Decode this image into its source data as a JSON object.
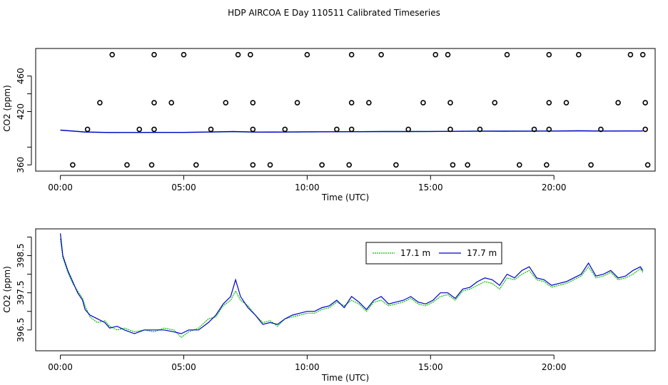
{
  "title": "HDP AIRCOA E  Day 110511  Calibrated Timeseries",
  "colors": {
    "green": "#00c000",
    "blue": "#0000cc"
  },
  "chart_data": [
    {
      "type": "scatter",
      "xlabel": "Time (UTC)",
      "ylabel": "CO2 (ppm)",
      "xlim": [
        -1,
        24.1
      ],
      "ylim": [
        353,
        491
      ],
      "x_ticks": [
        0,
        5,
        10,
        15,
        20
      ],
      "x_tick_labels": [
        "00:00",
        "05:00",
        "10:00",
        "15:00",
        "20:00"
      ],
      "y_ticks": [
        360,
        420,
        460
      ],
      "y_tick_labels": [
        "360",
        "420",
        "460"
      ],
      "y_ticks_minor": [
        380,
        440
      ],
      "calibration_points": {
        "hours": [
          2.1,
          3.8,
          5.0,
          7.2,
          7.7,
          10.0,
          11.8,
          13.0,
          15.2,
          15.7,
          18.1,
          19.8,
          21.0,
          23.1,
          23.6,
          1.6,
          3.8,
          4.5,
          6.7,
          7.8,
          9.6,
          11.8,
          12.5,
          14.7,
          15.8,
          17.6,
          19.8,
          20.5,
          22.6,
          23.7,
          1.1,
          3.2,
          3.8,
          6.1,
          7.8,
          9.1,
          11.2,
          11.8,
          14.1,
          15.8,
          17.0,
          19.2,
          19.8,
          21.9,
          23.7,
          0.5,
          2.7,
          3.7,
          5.5,
          7.8,
          8.5,
          10.6,
          11.7,
          13.6,
          15.9,
          16.5,
          18.6,
          19.7,
          21.5,
          23.8
        ],
        "values": [
          484,
          484,
          484,
          484,
          484,
          484,
          484,
          484,
          484,
          484,
          484,
          484,
          484,
          484,
          484,
          430,
          430,
          430,
          430,
          430,
          430,
          430,
          430,
          430,
          430,
          430,
          430,
          430,
          430,
          430,
          400,
          400,
          400,
          400,
          400,
          400,
          400,
          400,
          400,
          400,
          400,
          400,
          400,
          400,
          400,
          360,
          360,
          360,
          360,
          360,
          360,
          360,
          360,
          360,
          360,
          360,
          360,
          360,
          360,
          360
        ]
      },
      "series": [
        {
          "name": "17.1 m",
          "color": "#00c000",
          "hours": [
            0,
            0.5,
            1,
            2,
            3,
            4,
            5,
            6,
            7,
            8,
            9,
            10,
            11,
            12,
            13,
            14,
            15,
            16,
            17,
            18,
            19,
            20,
            21,
            22,
            23,
            23.6
          ],
          "values": [
            399,
            398,
            397,
            396.4,
            396.5,
            396.6,
            396.6,
            397,
            397.3,
            396.9,
            397,
            397.2,
            397.3,
            397.4,
            397.5,
            397.5,
            397.6,
            397.8,
            398,
            397.9,
            398,
            398.1,
            398.3,
            398.1,
            398.2,
            398.2
          ]
        },
        {
          "name": "17.7 m",
          "color": "#0000cc",
          "hours": [
            0,
            0.5,
            1,
            2,
            3,
            4,
            5,
            6,
            7,
            8,
            9,
            10,
            11,
            12,
            13,
            14,
            15,
            16,
            17,
            18,
            19,
            20,
            21,
            22,
            23,
            23.6
          ],
          "values": [
            399.2,
            398.1,
            397,
            396.5,
            396.5,
            396.6,
            396.6,
            397,
            397.5,
            396.9,
            397,
            397.2,
            397.3,
            397.4,
            397.5,
            397.5,
            397.6,
            397.8,
            398,
            397.9,
            398,
            398.1,
            398.3,
            398.1,
            398.2,
            398.2
          ]
        }
      ]
    },
    {
      "type": "line",
      "xlabel": "Time (UTC)",
      "ylabel": "CO2 (ppm)",
      "xlim": [
        -1,
        24.1
      ],
      "ylim": [
        395.94,
        399.22
      ],
      "x_ticks": [
        0,
        5,
        10,
        15,
        20
      ],
      "x_tick_labels": [
        "00:00",
        "05:00",
        "10:00",
        "15:00",
        "20:00"
      ],
      "y_ticks": [
        396.5,
        397.5,
        398.5
      ],
      "y_tick_labels": [
        "396.5",
        "397.5",
        "398.5"
      ],
      "y_ticks_minor": [
        397.0,
        398.0,
        399.0
      ],
      "legend": {
        "position": "top-right",
        "entries": [
          "17.1 m",
          "17.7 m"
        ]
      },
      "series": [
        {
          "name": "17.1 m",
          "color": "#00c000",
          "hours": [
            0,
            0.1,
            0.3,
            0.5,
            0.7,
            0.9,
            1.0,
            1.2,
            1.5,
            1.8,
            2.0,
            2.3,
            2.6,
            3.0,
            3.4,
            3.8,
            4.2,
            4.6,
            4.9,
            5.2,
            5.6,
            6.0,
            6.3,
            6.6,
            6.9,
            7.1,
            7.3,
            7.6,
            7.9,
            8.2,
            8.5,
            8.8,
            9.1,
            9.4,
            9.7,
            10.0,
            10.3,
            10.6,
            10.9,
            11.2,
            11.5,
            11.8,
            12.1,
            12.4,
            12.7,
            13.0,
            13.3,
            13.6,
            13.9,
            14.2,
            14.5,
            14.8,
            15.1,
            15.4,
            15.7,
            16.0,
            16.3,
            16.6,
            16.9,
            17.2,
            17.5,
            17.8,
            18.1,
            18.4,
            18.7,
            19.0,
            19.3,
            19.6,
            19.9,
            20.2,
            20.5,
            20.8,
            21.1,
            21.4,
            21.7,
            22.0,
            22.3,
            22.6,
            22.9,
            23.2,
            23.5,
            23.6
          ],
          "values": [
            398.95,
            398.45,
            398.05,
            397.75,
            397.55,
            397.35,
            397.15,
            396.85,
            396.7,
            396.75,
            396.6,
            396.5,
            396.55,
            396.45,
            396.5,
            396.45,
            396.55,
            396.5,
            396.3,
            396.45,
            396.55,
            396.8,
            396.85,
            397.15,
            397.3,
            397.55,
            397.3,
            397.15,
            396.9,
            396.7,
            396.75,
            396.6,
            396.8,
            396.85,
            396.9,
            396.95,
            396.95,
            397.05,
            397.1,
            397.25,
            397.15,
            397.3,
            397.2,
            397.0,
            397.25,
            397.3,
            397.15,
            397.2,
            397.25,
            397.35,
            397.2,
            397.15,
            397.25,
            397.4,
            397.45,
            397.3,
            397.55,
            397.6,
            397.7,
            397.8,
            397.75,
            397.6,
            397.9,
            397.85,
            398.0,
            398.1,
            397.85,
            397.8,
            397.65,
            397.7,
            397.75,
            397.85,
            397.95,
            398.2,
            397.9,
            397.95,
            398.05,
            397.85,
            397.9,
            398.0,
            398.15,
            398.05
          ]
        },
        {
          "name": "17.7 m",
          "color": "#0000cc",
          "hours": [
            0,
            0.1,
            0.3,
            0.5,
            0.7,
            0.9,
            1.0,
            1.2,
            1.5,
            1.8,
            2.0,
            2.3,
            2.6,
            3.0,
            3.4,
            3.8,
            4.2,
            4.6,
            4.9,
            5.2,
            5.6,
            6.0,
            6.3,
            6.6,
            6.9,
            7.1,
            7.3,
            7.6,
            7.9,
            8.2,
            8.5,
            8.8,
            9.1,
            9.4,
            9.7,
            10.0,
            10.3,
            10.6,
            10.9,
            11.2,
            11.5,
            11.8,
            12.1,
            12.4,
            12.7,
            13.0,
            13.3,
            13.6,
            13.9,
            14.2,
            14.5,
            14.8,
            15.1,
            15.4,
            15.7,
            16.0,
            16.3,
            16.6,
            16.9,
            17.2,
            17.5,
            17.8,
            18.1,
            18.4,
            18.7,
            19.0,
            19.3,
            19.6,
            19.9,
            20.2,
            20.5,
            20.8,
            21.1,
            21.4,
            21.7,
            22.0,
            22.3,
            22.6,
            22.9,
            23.2,
            23.5,
            23.6
          ],
          "values": [
            399.1,
            398.5,
            398.1,
            397.8,
            397.5,
            397.3,
            397.05,
            396.9,
            396.8,
            396.7,
            396.55,
            396.6,
            396.5,
            396.4,
            396.5,
            396.5,
            396.5,
            396.45,
            396.4,
            396.5,
            396.5,
            396.7,
            396.9,
            397.2,
            397.4,
            397.85,
            397.4,
            397.1,
            396.9,
            396.65,
            396.7,
            396.65,
            396.8,
            396.9,
            396.95,
            397.0,
            397.0,
            397.1,
            397.15,
            397.3,
            397.1,
            397.4,
            397.25,
            397.05,
            397.3,
            397.4,
            397.2,
            397.25,
            397.3,
            397.4,
            397.25,
            397.2,
            397.3,
            397.5,
            397.5,
            397.35,
            397.6,
            397.65,
            397.8,
            397.9,
            397.85,
            397.7,
            398.0,
            397.9,
            398.1,
            398.2,
            397.9,
            397.85,
            397.7,
            397.75,
            397.8,
            397.9,
            398.0,
            398.3,
            397.95,
            398.0,
            398.1,
            397.9,
            397.95,
            398.1,
            398.2,
            398.1
          ]
        }
      ]
    }
  ]
}
